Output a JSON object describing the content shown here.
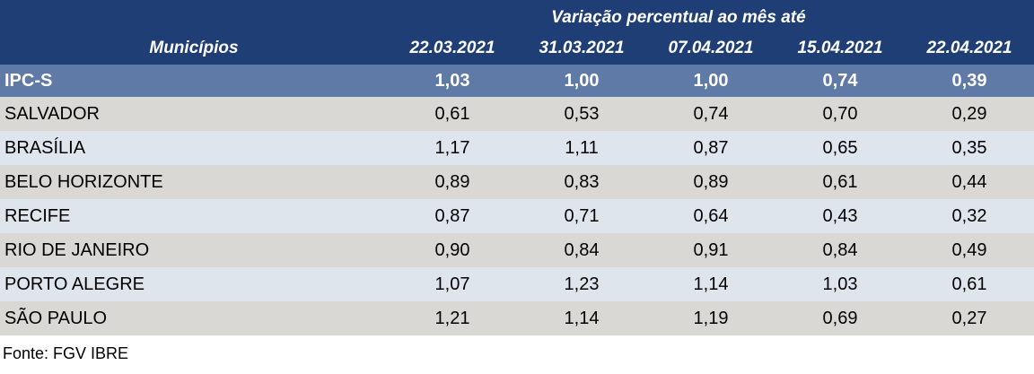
{
  "colors": {
    "header_bg": "#1F3E76",
    "ipcs_row_bg": "#5F7AA6",
    "row_gray_bg": "#D9D8D4",
    "row_blue_bg": "#DEE5EC",
    "header_text": "#FFFFFF",
    "body_text": "#000000"
  },
  "table": {
    "title": "Variação percentual ao mês até",
    "municipios_header": "Municípios",
    "date_columns": [
      "22.03.2021",
      "31.03.2021",
      "07.04.2021",
      "15.04.2021",
      "22.04.2021"
    ],
    "rows": [
      {
        "name": "IPC-S",
        "highlight": true,
        "values": [
          "1,03",
          "1,00",
          "1,00",
          "0,74",
          "0,39"
        ]
      },
      {
        "name": "SALVADOR",
        "values": [
          "0,61",
          "0,53",
          "0,74",
          "0,70",
          "0,29"
        ]
      },
      {
        "name": "BRASÍLIA",
        "values": [
          "1,17",
          "1,11",
          "0,87",
          "0,65",
          "0,35"
        ]
      },
      {
        "name": "BELO HORIZONTE",
        "values": [
          "0,89",
          "0,83",
          "0,89",
          "0,61",
          "0,44"
        ]
      },
      {
        "name": "RECIFE",
        "values": [
          "0,87",
          "0,71",
          "0,64",
          "0,43",
          "0,32"
        ]
      },
      {
        "name": "RIO DE JANEIRO",
        "values": [
          "0,90",
          "0,84",
          "0,91",
          "0,84",
          "0,49"
        ]
      },
      {
        "name": "PORTO ALEGRE",
        "values": [
          "1,07",
          "1,23",
          "1,14",
          "1,03",
          "0,61"
        ]
      },
      {
        "name": "SÃO PAULO",
        "values": [
          "1,21",
          "1,14",
          "1,19",
          "0,69",
          "0,27"
        ]
      }
    ]
  },
  "footer": {
    "source_label": "Fonte: FGV IBRE"
  },
  "chart_data": {
    "type": "table",
    "title": "Variação percentual ao mês até",
    "row_header": "Municípios",
    "columns": [
      "22.03.2021",
      "31.03.2021",
      "07.04.2021",
      "15.04.2021",
      "22.04.2021"
    ],
    "rows": [
      {
        "name": "IPC-S",
        "values": [
          1.03,
          1.0,
          1.0,
          0.74,
          0.39
        ]
      },
      {
        "name": "SALVADOR",
        "values": [
          0.61,
          0.53,
          0.74,
          0.7,
          0.29
        ]
      },
      {
        "name": "BRASÍLIA",
        "values": [
          1.17,
          1.11,
          0.87,
          0.65,
          0.35
        ]
      },
      {
        "name": "BELO HORIZONTE",
        "values": [
          0.89,
          0.83,
          0.89,
          0.61,
          0.44
        ]
      },
      {
        "name": "RECIFE",
        "values": [
          0.87,
          0.71,
          0.64,
          0.43,
          0.32
        ]
      },
      {
        "name": "RIO DE JANEIRO",
        "values": [
          0.9,
          0.84,
          0.91,
          0.84,
          0.49
        ]
      },
      {
        "name": "PORTO ALEGRE",
        "values": [
          1.07,
          1.23,
          1.14,
          1.03,
          0.61
        ]
      },
      {
        "name": "SÃO PAULO",
        "values": [
          1.21,
          1.14,
          1.19,
          0.69,
          0.27
        ]
      }
    ],
    "source": "Fonte: FGV IBRE",
    "units": "percent variation, decimal comma format"
  }
}
